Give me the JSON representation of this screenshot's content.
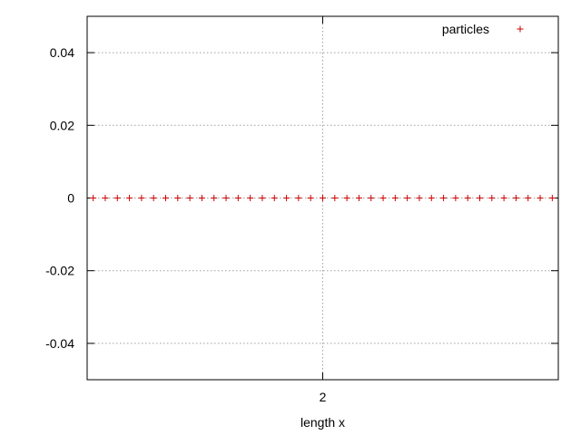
{
  "chart_data": {
    "type": "scatter",
    "title": "",
    "xlabel": "length x",
    "ylabel": "",
    "xlim": [
      0.05,
      3.95
    ],
    "ylim": [
      -0.05,
      0.05
    ],
    "xticks": [
      2
    ],
    "xtick_labels": [
      "2"
    ],
    "yticks": [
      0.04,
      0.02,
      0,
      -0.02,
      -0.04
    ],
    "ytick_labels": [
      "0.04",
      "0.02",
      "0",
      "-0.02",
      "-0.04"
    ],
    "grid": true,
    "legend_position": "top-right",
    "series": [
      {
        "name": "particles",
        "marker": "+",
        "color": "#cc0000",
        "x": [
          0.1,
          0.2,
          0.3,
          0.4,
          0.5,
          0.6,
          0.7,
          0.8,
          0.9,
          1.0,
          1.1,
          1.2,
          1.3,
          1.4,
          1.5,
          1.6,
          1.7,
          1.8,
          1.9,
          2.0,
          2.1,
          2.2,
          2.3,
          2.4,
          2.5,
          2.6,
          2.7,
          2.8,
          2.9,
          3.0,
          3.1,
          3.2,
          3.3,
          3.4,
          3.5,
          3.6,
          3.7,
          3.8,
          3.9
        ],
        "y": [
          0,
          0,
          0,
          0,
          0,
          0,
          0,
          0,
          0,
          0,
          0,
          0,
          0,
          0,
          0,
          0,
          0,
          0,
          0,
          0,
          0,
          0,
          0,
          0,
          0,
          0,
          0,
          0,
          0,
          0,
          0,
          0,
          0,
          0,
          0,
          0,
          0,
          0,
          0
        ]
      }
    ]
  }
}
